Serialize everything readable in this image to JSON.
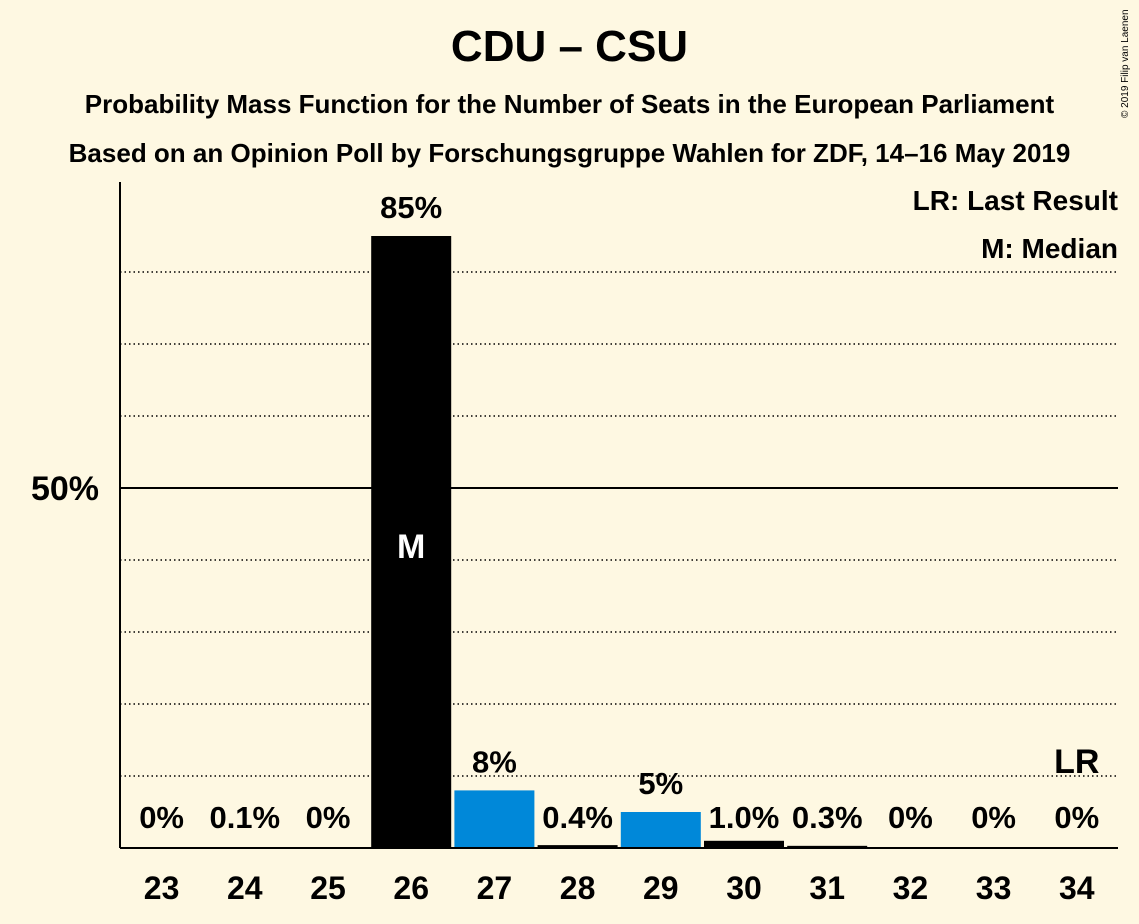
{
  "chart_data": {
    "type": "bar",
    "title": "CDU – CSU",
    "subtitle_1": "Probability Mass Function for the Number of Seats in the European Parliament",
    "subtitle_2": "Based on an Opinion Poll by Forschungsgruppe Wahlen for ZDF, 14–16 May 2019",
    "copyright": "© 2019 Filip van Laenen",
    "categories": [
      "23",
      "24",
      "25",
      "26",
      "27",
      "28",
      "29",
      "30",
      "31",
      "32",
      "33",
      "34"
    ],
    "values": [
      0,
      0.1,
      0,
      85,
      8,
      0.4,
      5,
      1.0,
      0.3,
      0,
      0,
      0
    ],
    "value_labels": [
      "0%",
      "0.1%",
      "0%",
      "85%",
      "8%",
      "0.4%",
      "5%",
      "1.0%",
      "0.3%",
      "0%",
      "0%",
      "0%"
    ],
    "bar_colors": [
      "#000000",
      "#000000",
      "#000000",
      "#000000",
      "#0088D9",
      "#000000",
      "#0088D9",
      "#000000",
      "#000000",
      "#000000",
      "#000000",
      "#000000"
    ],
    "ylim": [
      0,
      92.5
    ],
    "y_tick_label": "50%",
    "y_tick_value": 50,
    "gridlines_dotted": [
      10,
      20,
      30,
      40,
      60,
      70,
      80
    ],
    "median_category": "26",
    "median_marker": "M",
    "last_result_category": "34",
    "last_result_marker": "LR",
    "legend": [
      "LR: Last Result",
      "M: Median"
    ],
    "legend_position": "top-right"
  }
}
